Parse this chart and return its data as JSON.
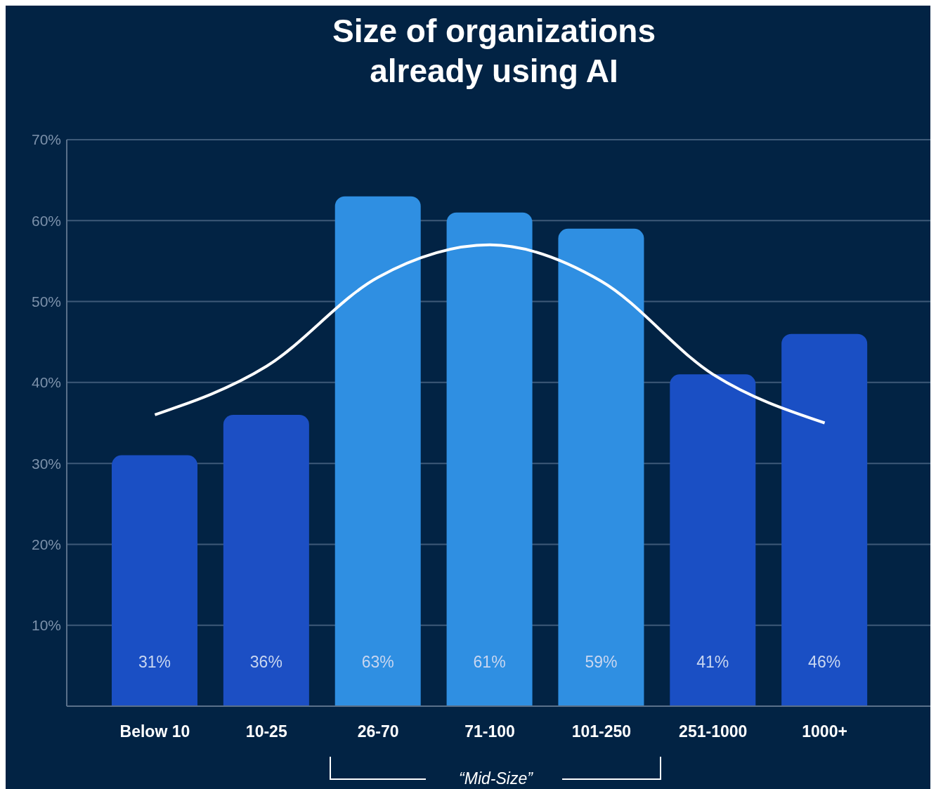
{
  "chart_data": {
    "type": "bar",
    "title": "Size of organizations\nalready using AI",
    "categories": [
      "Below 10",
      "10-25",
      "26-70",
      "71-100",
      "101-250",
      "251-1000",
      "1000+"
    ],
    "series": [
      {
        "values": [
          31,
          36,
          63,
          61,
          59,
          41,
          46
        ],
        "colors": [
          "#1a4fc4",
          "#1c4fc4",
          "#2f8fe2",
          "#2f8fe2",
          "#2f8fe2",
          "#1a4fc4",
          "#1a4fc4"
        ],
        "value_labels": [
          "31%",
          "36%",
          "63%",
          "61%",
          "59%",
          "41%",
          "46%"
        ]
      },
      {
        "type": "line",
        "color": "#ffffff",
        "values": [
          36,
          42,
          53,
          57,
          52.5,
          41,
          35
        ]
      }
    ],
    "ylim": [
      0,
      70
    ],
    "yticks": [
      {
        "value": 10,
        "label": "10%"
      },
      {
        "value": 20,
        "label": "20%"
      },
      {
        "value": 30,
        "label": "30%"
      },
      {
        "value": 40,
        "label": "40%"
      },
      {
        "value": 50,
        "label": "50%"
      },
      {
        "value": 60,
        "label": "60%"
      },
      {
        "value": 70,
        "label": "70%"
      }
    ],
    "grid": "y",
    "legend": false,
    "marker": "none",
    "line_style": "solid",
    "annotations": [
      "“Mid-Size”"
    ]
  }
}
